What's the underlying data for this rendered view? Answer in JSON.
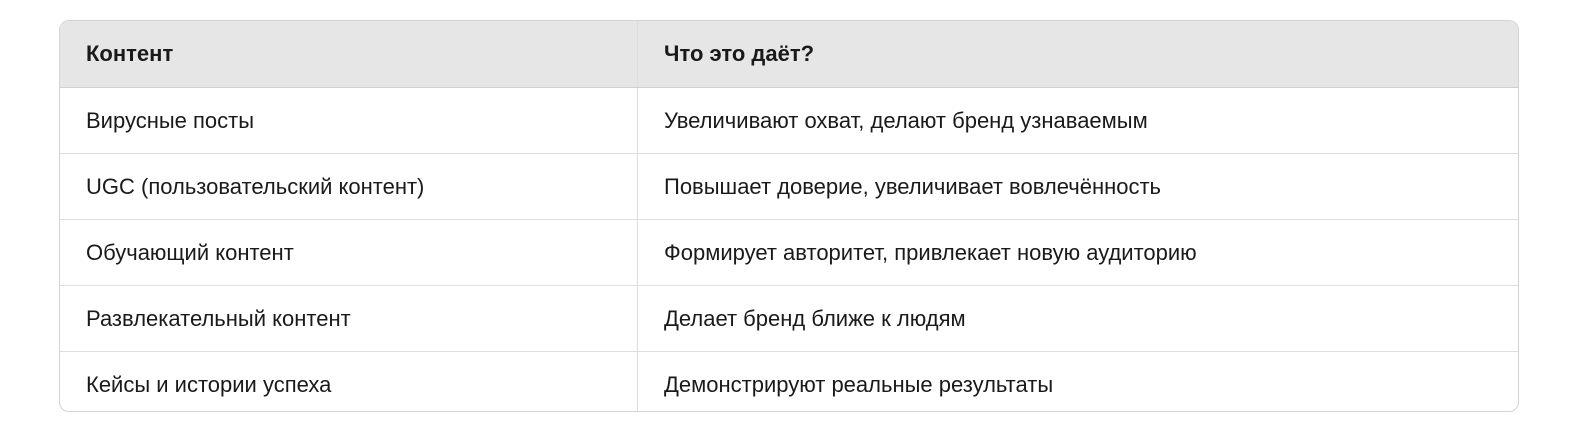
{
  "table": {
    "headers": [
      "Контент",
      "Что это даёт?"
    ],
    "rows": [
      [
        "Вирусные посты",
        "Увеличивают охват, делают бренд узнаваемым"
      ],
      [
        "UGC (пользовательский контент)",
        "Повышает доверие, увеличивает вовлечённость"
      ],
      [
        "Обучающий контент",
        "Формирует авторитет, привлекает новую аудиторию"
      ],
      [
        "Развлекательный контент",
        "Делает бренд ближе к людям"
      ],
      [
        "Кейсы и истории успеха",
        "Демонстрируют реальные результаты"
      ]
    ]
  }
}
